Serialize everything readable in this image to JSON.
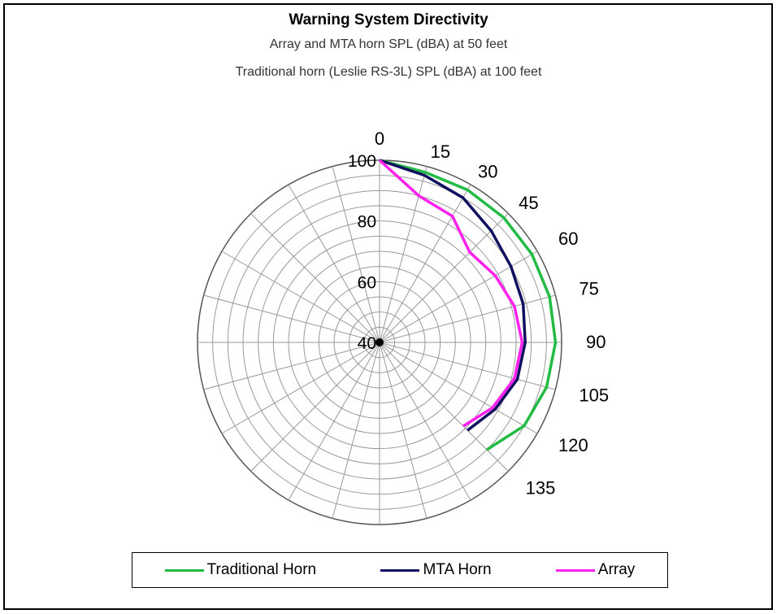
{
  "chart_data": {
    "type": "polar-line",
    "title": "Warning System Directivity",
    "subtitle_1": "Array and MTA horn SPL (dBA) at 50 feet",
    "subtitle_2": "Traditional horn (Leslie RS-3L) SPL (dBA) at 100 feet",
    "angle_labels": [
      "0",
      "15",
      "30",
      "45",
      "60",
      "75",
      "90",
      "105",
      "120",
      "135"
    ],
    "radial_labels": [
      "100",
      "80",
      "60",
      "40"
    ],
    "rlim": [
      40,
      100
    ],
    "grid": true,
    "legend_position": "bottom",
    "series": [
      {
        "name": "Traditional Horn",
        "color": "#22bb44",
        "angles": [
          0,
          15,
          30,
          45,
          60,
          75,
          90,
          105,
          120,
          135
        ],
        "values": [
          100,
          98,
          98,
          98,
          98,
          98,
          98,
          97,
          95,
          90
        ]
      },
      {
        "name": "MTA Horn",
        "color": "#101060",
        "angles": [
          0,
          15,
          30,
          45,
          60,
          75,
          90,
          105,
          120,
          135
        ],
        "values": [
          100,
          97,
          95,
          92,
          90,
          89,
          88,
          87,
          84,
          81
        ]
      },
      {
        "name": "Array",
        "color": "#ff22ee",
        "angles": [
          0,
          15,
          30,
          45,
          60,
          75,
          90,
          105,
          120,
          135
        ],
        "values": [
          100,
          90,
          88,
          82,
          84,
          86,
          87,
          86,
          83,
          79
        ]
      }
    ]
  }
}
